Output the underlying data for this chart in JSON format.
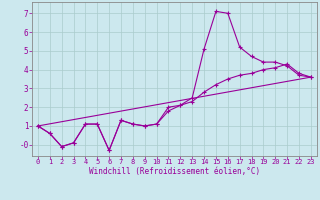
{
  "title": "",
  "xlabel": "Windchill (Refroidissement éolien,°C)",
  "ylabel": "",
  "bg_color": "#cce8ee",
  "grid_color": "#aacccc",
  "line_color": "#990099",
  "spine_color": "#888888",
  "xlim": [
    -0.5,
    23.5
  ],
  "ylim": [
    -0.6,
    7.6
  ],
  "yticks": [
    0,
    1,
    2,
    3,
    4,
    5,
    6,
    7
  ],
  "ytick_labels": [
    "-0",
    "1",
    "2",
    "3",
    "4",
    "5",
    "6",
    "7"
  ],
  "xticks": [
    0,
    1,
    2,
    3,
    4,
    5,
    6,
    7,
    8,
    9,
    10,
    11,
    12,
    13,
    14,
    15,
    16,
    17,
    18,
    19,
    20,
    21,
    22,
    23
  ],
  "series1_x": [
    0,
    1,
    2,
    3,
    4,
    5,
    6,
    7,
    8,
    9,
    10,
    11,
    12,
    13,
    14,
    15,
    16,
    17,
    18,
    19,
    20,
    21,
    22,
    23
  ],
  "series1_y": [
    1.0,
    0.6,
    -0.1,
    0.1,
    1.1,
    1.1,
    -0.3,
    1.3,
    1.1,
    1.0,
    1.1,
    2.0,
    2.1,
    2.5,
    5.1,
    7.1,
    7.0,
    5.2,
    4.7,
    4.4,
    4.4,
    4.2,
    3.7,
    3.6
  ],
  "series2_x": [
    0,
    1,
    2,
    3,
    4,
    5,
    6,
    7,
    8,
    9,
    10,
    11,
    12,
    13,
    14,
    15,
    16,
    17,
    18,
    19,
    20,
    21,
    22,
    23
  ],
  "series2_y": [
    1.0,
    0.6,
    -0.1,
    0.1,
    1.1,
    1.1,
    -0.3,
    1.3,
    1.1,
    1.0,
    1.1,
    1.8,
    2.1,
    2.3,
    2.8,
    3.2,
    3.5,
    3.7,
    3.8,
    4.0,
    4.1,
    4.3,
    3.8,
    3.6
  ],
  "series3_x": [
    0,
    23
  ],
  "series3_y": [
    1.0,
    3.6
  ]
}
